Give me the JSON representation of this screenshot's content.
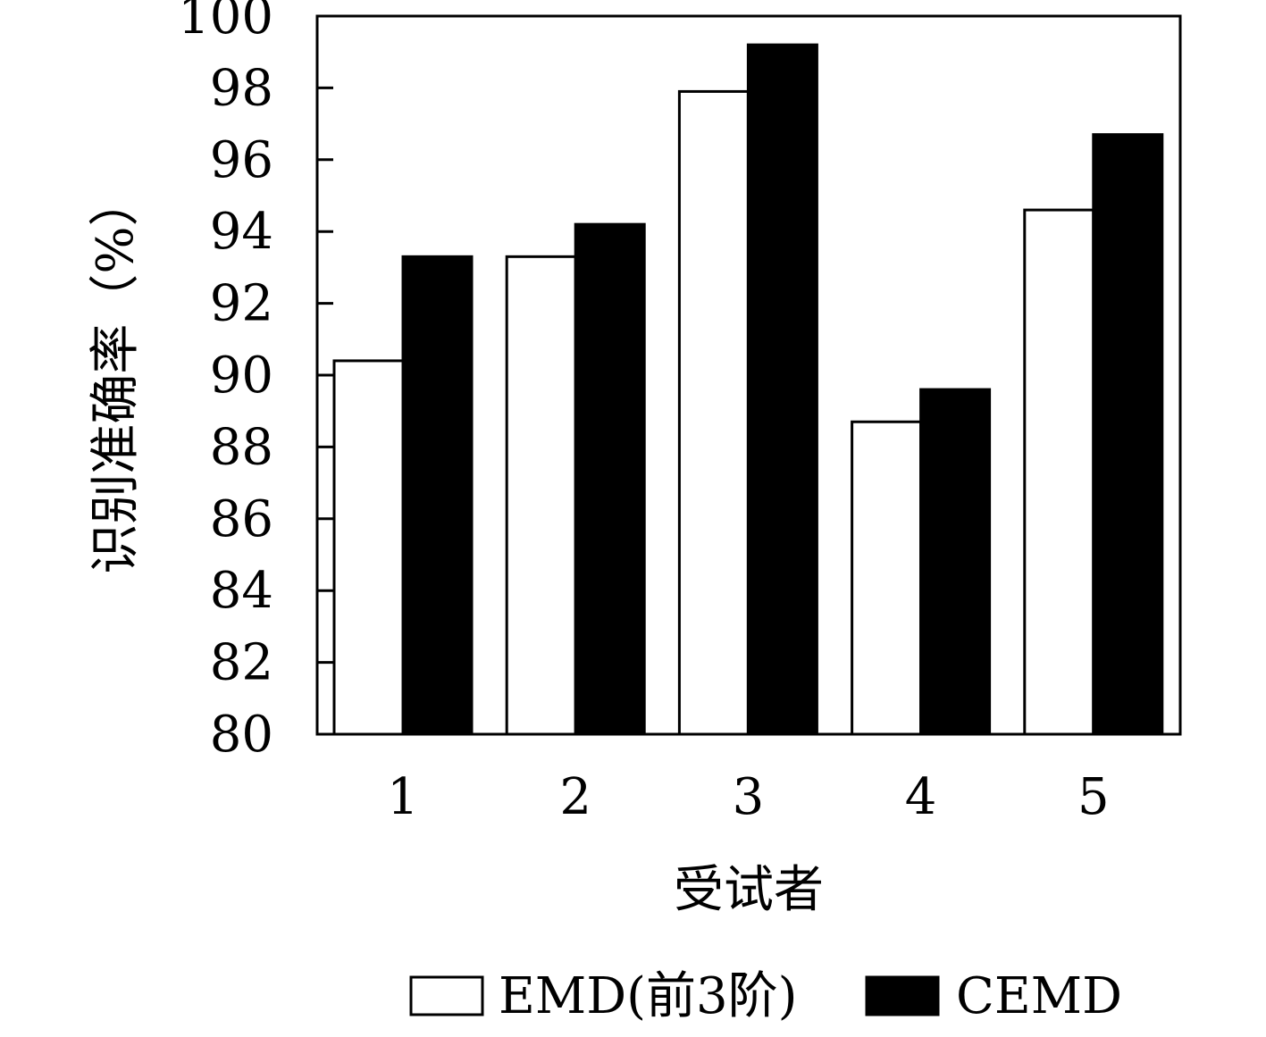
{
  "chart_data": {
    "type": "bar",
    "title": "",
    "xlabel": "受试者",
    "ylabel": "识别准确率（%）",
    "categories": [
      "1",
      "2",
      "3",
      "4",
      "5"
    ],
    "series": [
      {
        "name": "EMD(前3阶)",
        "values": [
          90.4,
          93.3,
          97.9,
          88.7,
          94.6
        ],
        "fill": "#ffffff"
      },
      {
        "name": "CEMD",
        "values": [
          93.3,
          94.2,
          99.2,
          89.6,
          96.7
        ],
        "fill": "#000000"
      }
    ],
    "ylim": [
      80,
      100
    ],
    "yticks": [
      80,
      82,
      84,
      86,
      88,
      90,
      92,
      94,
      96,
      98,
      100
    ],
    "grid": false,
    "legend_position": "bottom",
    "colors": {
      "stroke": "#000000",
      "background": "#ffffff"
    }
  }
}
